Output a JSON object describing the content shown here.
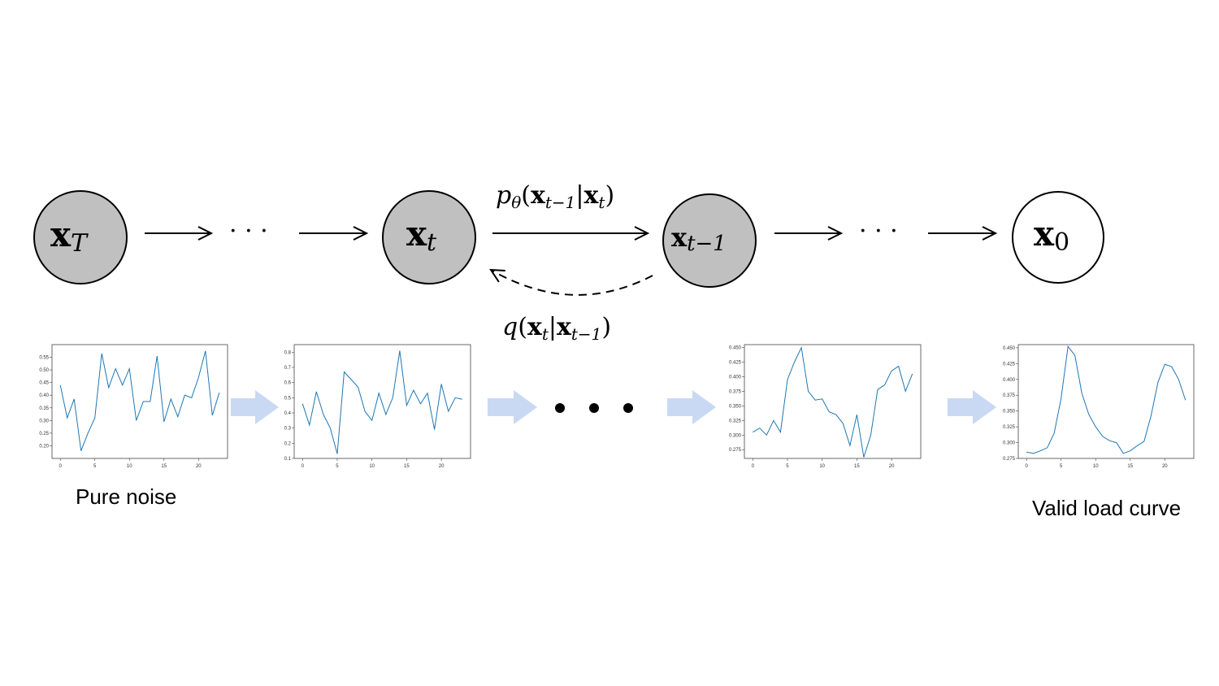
{
  "diagram": {
    "nodes": [
      {
        "id": "xT",
        "base": "x",
        "sub": "T",
        "fill": "#c0c0c0"
      },
      {
        "id": "xt",
        "base": "x",
        "sub": "t",
        "fill": "#c0c0c0"
      },
      {
        "id": "xt1",
        "base": "x",
        "sub": "t−1",
        "fill": "#c0c0c0"
      },
      {
        "id": "x0",
        "base": "x",
        "sub": "0",
        "fill": "#ffffff"
      }
    ],
    "ellipsis": "· · ·",
    "reverse_label": {
      "p": "p",
      "theta": "θ",
      "open": "(",
      "a": "x",
      "a_sub": "t−1",
      "bar": "|",
      "b": "x",
      "b_sub": "t",
      "close": ")"
    },
    "forward_label": {
      "q": "q",
      "open": "(",
      "a": "x",
      "a_sub": "t",
      "bar": "|",
      "b": "x",
      "b_sub": "t−1",
      "close": ")"
    },
    "flow_arrow_color": "#c9d9f3",
    "series_color": "#1f77b4"
  },
  "captions": {
    "start": "Pure noise",
    "end": "Valid load curve"
  },
  "chart_data": [
    {
      "type": "line",
      "name": "pure-noise",
      "x": [
        0,
        1,
        2,
        3,
        4,
        5,
        6,
        7,
        8,
        9,
        10,
        11,
        12,
        13,
        14,
        15,
        16,
        17,
        18,
        19,
        20,
        21,
        22,
        23
      ],
      "values": [
        0.44,
        0.31,
        0.385,
        0.18,
        0.25,
        0.31,
        0.565,
        0.43,
        0.505,
        0.44,
        0.505,
        0.3,
        0.375,
        0.375,
        0.555,
        0.295,
        0.385,
        0.315,
        0.4,
        0.39,
        0.47,
        0.575,
        0.32,
        0.41
      ],
      "ylim": [
        0.15,
        0.6
      ],
      "yticks": [
        "0.20",
        "0.25",
        "0.30",
        "0.35",
        "0.40",
        "0.45",
        "0.50",
        "0.55"
      ],
      "xticks": [
        "0",
        "5",
        "10",
        "15",
        "20"
      ]
    },
    {
      "type": "line",
      "name": "step-2",
      "x": [
        0,
        1,
        2,
        3,
        4,
        5,
        6,
        7,
        8,
        9,
        10,
        11,
        12,
        13,
        14,
        15,
        16,
        17,
        18,
        19,
        20,
        21,
        22,
        23
      ],
      "values": [
        0.46,
        0.32,
        0.54,
        0.39,
        0.3,
        0.13,
        0.67,
        0.62,
        0.57,
        0.41,
        0.35,
        0.53,
        0.39,
        0.5,
        0.81,
        0.45,
        0.55,
        0.46,
        0.53,
        0.29,
        0.59,
        0.41,
        0.5,
        0.49
      ],
      "ylim": [
        0.1,
        0.85
      ],
      "yticks": [
        "0.1",
        "0.2",
        "0.3",
        "0.4",
        "0.5",
        "0.6",
        "0.7",
        "0.8"
      ],
      "xticks": [
        "0",
        "5",
        "10",
        "15",
        "20"
      ]
    },
    {
      "type": "line",
      "name": "step-t-1",
      "x": [
        0,
        1,
        2,
        3,
        4,
        5,
        6,
        7,
        8,
        9,
        10,
        11,
        12,
        13,
        14,
        15,
        16,
        17,
        18,
        19,
        20,
        21,
        22,
        23
      ],
      "values": [
        0.305,
        0.312,
        0.3,
        0.325,
        0.305,
        0.395,
        0.425,
        0.45,
        0.375,
        0.36,
        0.362,
        0.34,
        0.335,
        0.32,
        0.282,
        0.335,
        0.262,
        0.3,
        0.378,
        0.386,
        0.41,
        0.418,
        0.375,
        0.405
      ],
      "ylim": [
        0.26,
        0.455
      ],
      "yticks": [
        "0.275",
        "0.300",
        "0.325",
        "0.350",
        "0.375",
        "0.400",
        "0.425",
        "0.450"
      ],
      "xticks": [
        "0",
        "5",
        "10",
        "15",
        "20"
      ]
    },
    {
      "type": "line",
      "name": "valid-load-curve",
      "x": [
        0,
        1,
        2,
        3,
        4,
        5,
        6,
        7,
        8,
        9,
        10,
        11,
        12,
        13,
        14,
        15,
        16,
        17,
        18,
        19,
        20,
        21,
        22,
        23
      ],
      "values": [
        0.285,
        0.283,
        0.287,
        0.292,
        0.315,
        0.37,
        0.452,
        0.438,
        0.378,
        0.345,
        0.325,
        0.31,
        0.303,
        0.3,
        0.283,
        0.287,
        0.295,
        0.302,
        0.342,
        0.395,
        0.424,
        0.42,
        0.4,
        0.367
      ],
      "ylim": [
        0.275,
        0.455
      ],
      "yticks": [
        "0.275",
        "0.300",
        "0.325",
        "0.350",
        "0.375",
        "0.400",
        "0.425",
        "0.450"
      ],
      "xticks": [
        "0",
        "5",
        "10",
        "15",
        "20"
      ]
    }
  ]
}
